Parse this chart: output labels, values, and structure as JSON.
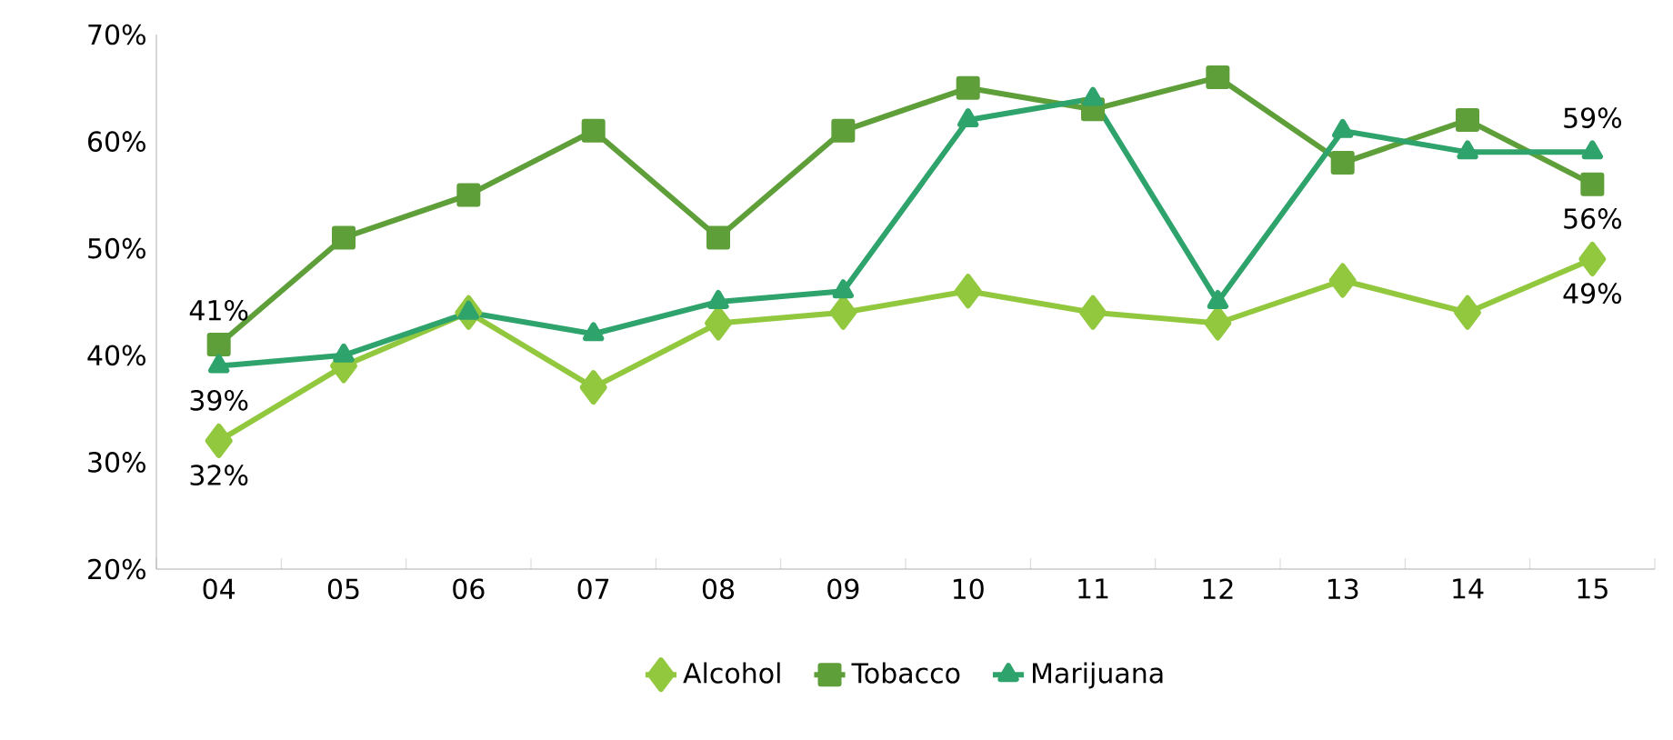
{
  "chart_data": {
    "type": "line",
    "categories": [
      "04",
      "05",
      "06",
      "07",
      "08",
      "09",
      "10",
      "11",
      "12",
      "13",
      "14",
      "15"
    ],
    "ylim": [
      20,
      70
    ],
    "yticks": [
      {
        "value": 20,
        "label": "20%"
      },
      {
        "value": 30,
        "label": "30%"
      },
      {
        "value": 40,
        "label": "40%"
      },
      {
        "value": 50,
        "label": "50%"
      },
      {
        "value": 60,
        "label": "60%"
      },
      {
        "value": 70,
        "label": "70%"
      }
    ],
    "grid": false,
    "legend": "bottom",
    "line_style": "solid",
    "series": [
      {
        "name": "Alcohol",
        "color": "#92c83e",
        "marker": "diamond",
        "values": [
          32,
          39,
          44,
          37,
          43,
          44,
          46,
          44,
          43,
          47,
          44,
          49
        ],
        "value_labels": [
          "32%",
          null,
          null,
          null,
          null,
          null,
          null,
          null,
          null,
          null,
          null,
          "49%"
        ]
      },
      {
        "name": "Tobacco",
        "color": "#5e9f3a",
        "marker": "square",
        "values": [
          41,
          51,
          55,
          61,
          51,
          61,
          65,
          63,
          66,
          58,
          62,
          56
        ],
        "value_labels": [
          "41%",
          null,
          null,
          null,
          null,
          null,
          null,
          null,
          null,
          null,
          null,
          "56%"
        ]
      },
      {
        "name": "Marijuana",
        "color": "#2ea36b",
        "marker": "triangle",
        "values": [
          39,
          40,
          44,
          42,
          45,
          46,
          62,
          64,
          45,
          61,
          59,
          59
        ],
        "value_labels": [
          "39%",
          null,
          null,
          null,
          null,
          null,
          null,
          null,
          null,
          null,
          null,
          "59%"
        ]
      }
    ]
  }
}
